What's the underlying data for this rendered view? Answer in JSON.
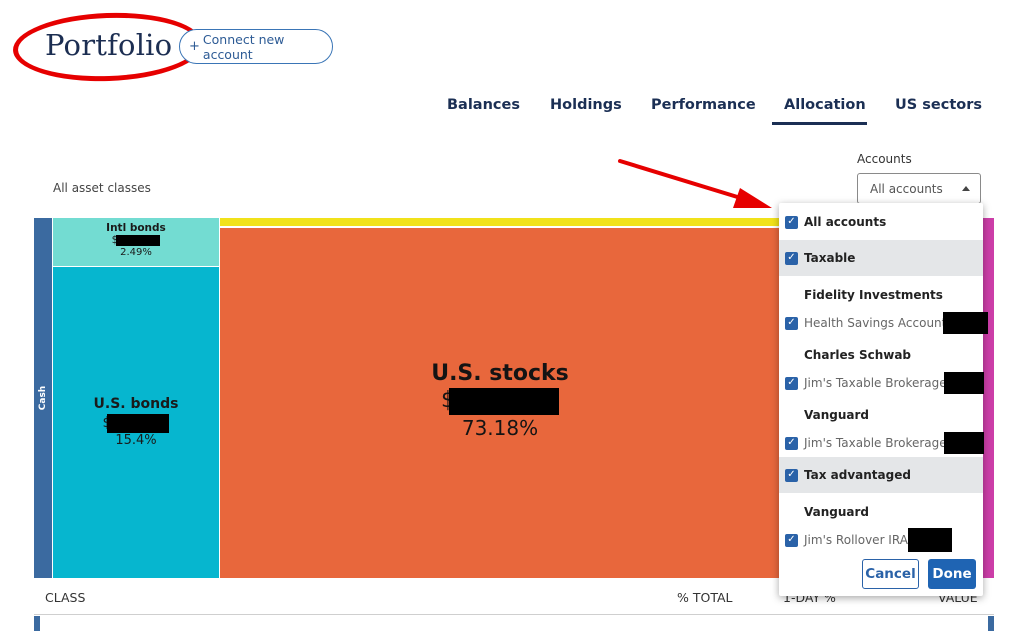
{
  "header": {
    "title": "Portfolio",
    "connect_button": {
      "icon": "plus-icon",
      "label": "Connect new account"
    }
  },
  "tabs": [
    {
      "label": "Balances",
      "active": false
    },
    {
      "label": "Holdings",
      "active": false
    },
    {
      "label": "Performance",
      "active": false
    },
    {
      "label": "Allocation",
      "active": true
    },
    {
      "label": "US sectors",
      "active": false
    }
  ],
  "filter": {
    "asset_classes": "All asset classes"
  },
  "accounts_filter": {
    "label": "Accounts",
    "selected": "All accounts"
  },
  "treemap": {
    "cash": {
      "label": "Cash",
      "color": "#3b6aa0"
    },
    "intl_bonds": {
      "label": "Intl bonds",
      "value_prefix": "$",
      "percent": "2.49%",
      "color": "#73dcd2"
    },
    "us_bonds": {
      "label": "U.S. bonds",
      "value_prefix": "$",
      "percent": "15.4%",
      "color": "#06b6cf"
    },
    "us_stocks": {
      "label": "U.S. stocks",
      "value_prefix": "$",
      "percent": "73.18%",
      "color": "#e8673c"
    },
    "other_yellow": {
      "color": "#f1e21a"
    },
    "other_pink": {
      "color": "#cc3ea8"
    }
  },
  "table": {
    "headers": {
      "class": "CLASS",
      "pct_total": "% TOTAL",
      "one_day": "1-DAY %",
      "value": "VALUE"
    }
  },
  "dropdown": {
    "all_accounts": {
      "label": "All accounts",
      "checked": true
    },
    "groups": [
      {
        "label": "Taxable",
        "checked": true,
        "institutions": [
          {
            "name": "Fidelity Investments",
            "accounts": [
              {
                "label": "Health Savings Account",
                "checked": true
              }
            ]
          },
          {
            "name": "Charles Schwab",
            "accounts": [
              {
                "label": "Jim's Taxable Brokerage",
                "checked": true
              }
            ]
          },
          {
            "name": "Vanguard",
            "accounts": [
              {
                "label": "Jim's Taxable Brokerage",
                "checked": true
              }
            ]
          }
        ]
      },
      {
        "label": "Tax advantaged",
        "checked": true,
        "institutions": [
          {
            "name": "Vanguard",
            "accounts": [
              {
                "label": "Jim's Rollover IRA",
                "checked": true
              }
            ]
          }
        ]
      }
    ],
    "cancel_label": "Cancel",
    "done_label": "Done"
  },
  "colors": {
    "brand_navy": "#1b2f54",
    "accent_blue": "#2a62a8",
    "annotation_red": "#e60000"
  }
}
